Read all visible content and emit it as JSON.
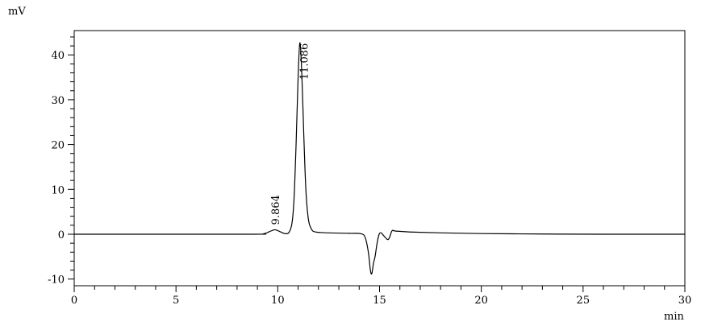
{
  "chart_data": {
    "type": "line",
    "title": "",
    "xlabel": "min",
    "ylabel": "mV",
    "xlim": [
      0,
      30
    ],
    "ylim": [
      -11.5,
      45.5
    ],
    "x_major_ticks": [
      0,
      5,
      10,
      15,
      20,
      25,
      30
    ],
    "x_minor_step": 1,
    "y_major_ticks": [
      -10,
      0,
      10,
      20,
      30,
      40
    ],
    "y_minor_step": 2,
    "grid": false,
    "line_color": "#000000",
    "peak_labels": [
      {
        "label": "9.864",
        "x": 9.864,
        "y": 1.0
      },
      {
        "label": "11.086",
        "x": 11.086,
        "y": 42.7
      }
    ],
    "trace": [
      [
        0,
        0
      ],
      [
        8.5,
        0
      ],
      [
        9.3,
        0.1
      ],
      [
        9.6,
        0.6
      ],
      [
        9.864,
        1.0
      ],
      [
        10.1,
        0.6
      ],
      [
        10.35,
        0.15
      ],
      [
        10.55,
        0.4
      ],
      [
        10.7,
        2.5
      ],
      [
        10.8,
        8
      ],
      [
        10.9,
        20
      ],
      [
        11.0,
        35
      ],
      [
        11.086,
        42.7
      ],
      [
        11.18,
        36
      ],
      [
        11.28,
        22
      ],
      [
        11.38,
        10
      ],
      [
        11.5,
        3.5
      ],
      [
        11.65,
        1.2
      ],
      [
        11.85,
        0.5
      ],
      [
        12.5,
        0.3
      ],
      [
        13.5,
        0.2
      ],
      [
        14.1,
        0.1
      ],
      [
        14.3,
        -0.8
      ],
      [
        14.45,
        -4
      ],
      [
        14.55,
        -8
      ],
      [
        14.62,
        -8.8
      ],
      [
        14.7,
        -6.5
      ],
      [
        14.78,
        -5
      ],
      [
        14.88,
        -2
      ],
      [
        14.98,
        0
      ],
      [
        15.08,
        0.3
      ],
      [
        15.2,
        -0.3
      ],
      [
        15.4,
        -1.2
      ],
      [
        15.5,
        -0.6
      ],
      [
        15.62,
        0.8
      ],
      [
        15.8,
        0.7
      ],
      [
        16.5,
        0.5
      ],
      [
        18,
        0.3
      ],
      [
        20,
        0.15
      ],
      [
        23,
        0.05
      ],
      [
        26,
        0
      ],
      [
        30,
        0
      ]
    ]
  }
}
